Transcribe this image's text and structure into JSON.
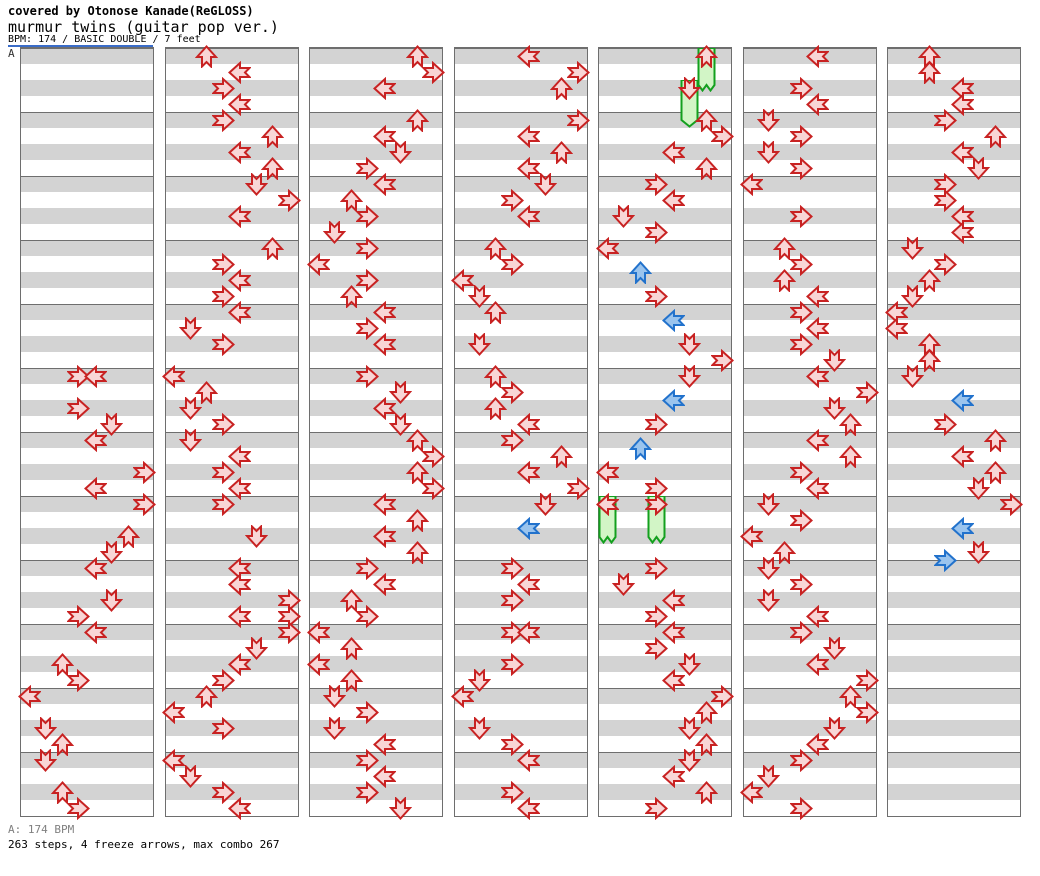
{
  "header": {
    "cover_line": "covered by Otonose Kanade(ReGLOSS)",
    "title": "murmur twins (guitar pop ver.)",
    "info_line": "BPM: 174 / BASIC DOUBLE / 7 feet"
  },
  "footer": {
    "section_bpm": "A: 174 BPM",
    "summary": "263 steps, 4 freeze arrows, max combo 267"
  },
  "section_marker": {
    "label": "A",
    "line_color": "#3a6cc8"
  },
  "colors": {
    "step_fill": "#f8d6d6",
    "step_border": "#c82222",
    "offbeat_fill": "#9ac4ee",
    "offbeat_border": "#2272cc",
    "freeze_fill": "#d2f5c6",
    "freeze_border": "#13a01e",
    "stripe_gray": "#d3d3d3",
    "grid_line": "#6e6e6e"
  },
  "chart_data": {
    "type": "step-chart",
    "title": "murmur twins (guitar pop ver.)",
    "bpm": 174,
    "difficulty": "BASIC DOUBLE",
    "feet": 7,
    "step_count": 263,
    "freeze_count": 4,
    "max_combo": 267,
    "lanes": [
      "P1-Left",
      "P1-Down",
      "P1-Up",
      "P1-Right",
      "P2-Left",
      "P2-Down",
      "P2-Up",
      "P2-Right"
    ],
    "lane_directions": [
      "left",
      "down",
      "up",
      "right",
      "left",
      "down",
      "up",
      "right"
    ],
    "columns": 7,
    "measures_per_column": 12,
    "beats_per_measure": 4,
    "steps": [
      [
        0,
        20,
        3
      ],
      [
        0,
        20,
        4
      ],
      [
        0,
        22,
        3
      ],
      [
        0,
        23,
        5
      ],
      [
        0,
        24,
        4
      ],
      [
        0,
        26,
        7
      ],
      [
        0,
        27,
        4
      ],
      [
        0,
        28,
        7
      ],
      [
        0,
        30,
        6
      ],
      [
        0,
        31,
        5
      ],
      [
        0,
        32,
        4
      ],
      [
        0,
        34,
        5
      ],
      [
        0,
        35,
        3
      ],
      [
        0,
        36,
        4
      ],
      [
        0,
        38,
        2
      ],
      [
        0,
        39,
        3
      ],
      [
        0,
        40,
        0
      ],
      [
        0,
        42,
        1
      ],
      [
        0,
        43,
        2
      ],
      [
        0,
        44,
        1
      ],
      [
        0,
        46,
        2
      ],
      [
        0,
        47,
        3
      ],
      [
        1,
        0,
        2
      ],
      [
        1,
        1,
        4
      ],
      [
        1,
        2,
        3
      ],
      [
        1,
        3,
        4
      ],
      [
        1,
        4,
        3
      ],
      [
        1,
        5,
        6
      ],
      [
        1,
        6,
        4
      ],
      [
        1,
        7,
        6
      ],
      [
        1,
        8,
        5
      ],
      [
        1,
        9,
        7
      ],
      [
        1,
        10,
        4
      ],
      [
        1,
        12,
        6
      ],
      [
        1,
        13,
        3
      ],
      [
        1,
        14,
        4
      ],
      [
        1,
        15,
        3
      ],
      [
        1,
        16,
        4
      ],
      [
        1,
        17,
        1
      ],
      [
        1,
        18,
        3
      ],
      [
        1,
        20,
        0
      ],
      [
        1,
        21,
        2
      ],
      [
        1,
        22,
        1
      ],
      [
        1,
        23,
        3
      ],
      [
        1,
        24,
        1
      ],
      [
        1,
        25,
        4
      ],
      [
        1,
        26,
        3
      ],
      [
        1,
        27,
        4
      ],
      [
        1,
        28,
        3
      ],
      [
        1,
        30,
        5
      ],
      [
        1,
        32,
        4
      ],
      [
        1,
        33,
        4
      ],
      [
        1,
        34,
        7
      ],
      [
        1,
        35,
        4
      ],
      [
        1,
        35,
        7
      ],
      [
        1,
        36,
        7
      ],
      [
        1,
        37,
        5
      ],
      [
        1,
        38,
        4
      ],
      [
        1,
        39,
        3
      ],
      [
        1,
        40,
        2
      ],
      [
        1,
        41,
        0
      ],
      [
        1,
        42,
        3
      ],
      [
        1,
        44,
        0
      ],
      [
        1,
        45,
        1
      ],
      [
        1,
        46,
        3
      ],
      [
        1,
        47,
        4
      ],
      [
        2,
        0,
        6
      ],
      [
        2,
        1,
        7
      ],
      [
        2,
        2,
        4
      ],
      [
        2,
        4,
        6
      ],
      [
        2,
        5,
        4
      ],
      [
        2,
        6,
        5
      ],
      [
        2,
        7,
        3
      ],
      [
        2,
        8,
        4
      ],
      [
        2,
        9,
        2
      ],
      [
        2,
        10,
        3
      ],
      [
        2,
        11,
        1
      ],
      [
        2,
        12,
        3
      ],
      [
        2,
        13,
        0
      ],
      [
        2,
        14,
        3
      ],
      [
        2,
        15,
        2
      ],
      [
        2,
        16,
        4
      ],
      [
        2,
        17,
        3
      ],
      [
        2,
        18,
        4
      ],
      [
        2,
        20,
        3
      ],
      [
        2,
        21,
        5
      ],
      [
        2,
        22,
        4
      ],
      [
        2,
        23,
        5
      ],
      [
        2,
        24,
        6
      ],
      [
        2,
        25,
        7
      ],
      [
        2,
        26,
        6
      ],
      [
        2,
        27,
        7
      ],
      [
        2,
        28,
        4
      ],
      [
        2,
        29,
        6
      ],
      [
        2,
        30,
        4
      ],
      [
        2,
        31,
        6
      ],
      [
        2,
        32,
        3
      ],
      [
        2,
        33,
        4
      ],
      [
        2,
        34,
        2
      ],
      [
        2,
        35,
        3
      ],
      [
        2,
        36,
        0
      ],
      [
        2,
        37,
        2
      ],
      [
        2,
        38,
        0
      ],
      [
        2,
        39,
        2
      ],
      [
        2,
        40,
        1
      ],
      [
        2,
        41,
        3
      ],
      [
        2,
        42,
        1
      ],
      [
        2,
        43,
        4
      ],
      [
        2,
        44,
        3
      ],
      [
        2,
        45,
        4
      ],
      [
        2,
        46,
        3
      ],
      [
        2,
        47,
        5
      ],
      [
        3,
        0,
        4
      ],
      [
        3,
        1,
        7
      ],
      [
        3,
        2,
        6
      ],
      [
        3,
        4,
        7
      ],
      [
        3,
        5,
        4
      ],
      [
        3,
        6,
        6
      ],
      [
        3,
        7,
        4
      ],
      [
        3,
        8,
        5
      ],
      [
        3,
        9,
        3
      ],
      [
        3,
        10,
        4
      ],
      [
        3,
        12,
        2
      ],
      [
        3,
        13,
        3
      ],
      [
        3,
        14,
        0
      ],
      [
        3,
        15,
        1
      ],
      [
        3,
        16,
        2
      ],
      [
        3,
        18,
        1
      ],
      [
        3,
        20,
        2
      ],
      [
        3,
        21,
        3
      ],
      [
        3,
        22,
        2
      ],
      [
        3,
        23,
        4
      ],
      [
        3,
        24,
        3
      ],
      [
        3,
        25,
        6
      ],
      [
        3,
        26,
        4
      ],
      [
        3,
        27,
        7
      ],
      [
        3,
        28,
        5
      ],
      [
        3,
        32,
        3
      ],
      [
        3,
        33,
        4
      ],
      [
        3,
        34,
        3
      ],
      [
        3,
        36,
        3
      ],
      [
        3,
        36,
        4
      ],
      [
        3,
        38,
        3
      ],
      [
        3,
        39,
        1
      ],
      [
        3,
        40,
        0
      ],
      [
        3,
        42,
        1
      ],
      [
        3,
        43,
        3
      ],
      [
        3,
        44,
        4
      ],
      [
        3,
        46,
        3
      ],
      [
        3,
        47,
        4
      ],
      [
        4,
        4,
        6
      ],
      [
        4,
        5,
        7
      ],
      [
        4,
        6,
        4
      ],
      [
        4,
        7,
        6
      ],
      [
        4,
        8,
        3
      ],
      [
        4,
        9,
        4
      ],
      [
        4,
        10,
        1
      ],
      [
        4,
        11,
        3
      ],
      [
        4,
        12,
        0
      ],
      [
        4,
        15,
        3
      ],
      [
        4,
        18,
        5
      ],
      [
        4,
        19,
        7
      ],
      [
        4,
        20,
        5
      ],
      [
        4,
        23,
        3
      ],
      [
        4,
        26,
        0
      ],
      [
        4,
        27,
        3
      ],
      [
        4,
        32,
        3
      ],
      [
        4,
        33,
        1
      ],
      [
        4,
        34,
        4
      ],
      [
        4,
        35,
        3
      ],
      [
        4,
        36,
        4
      ],
      [
        4,
        37,
        3
      ],
      [
        4,
        38,
        5
      ],
      [
        4,
        39,
        4
      ],
      [
        4,
        40,
        7
      ],
      [
        4,
        41,
        6
      ],
      [
        4,
        42,
        5
      ],
      [
        4,
        43,
        6
      ],
      [
        4,
        44,
        5
      ],
      [
        4,
        45,
        4
      ],
      [
        4,
        46,
        6
      ],
      [
        4,
        47,
        3
      ],
      [
        5,
        0,
        4
      ],
      [
        5,
        2,
        3
      ],
      [
        5,
        3,
        4
      ],
      [
        5,
        4,
        1
      ],
      [
        5,
        5,
        3
      ],
      [
        5,
        6,
        1
      ],
      [
        5,
        7,
        3
      ],
      [
        5,
        8,
        0
      ],
      [
        5,
        10,
        3
      ],
      [
        5,
        12,
        2
      ],
      [
        5,
        13,
        3
      ],
      [
        5,
        14,
        2
      ],
      [
        5,
        15,
        4
      ],
      [
        5,
        16,
        3
      ],
      [
        5,
        17,
        4
      ],
      [
        5,
        18,
        3
      ],
      [
        5,
        19,
        5
      ],
      [
        5,
        20,
        4
      ],
      [
        5,
        21,
        7
      ],
      [
        5,
        22,
        5
      ],
      [
        5,
        23,
        6
      ],
      [
        5,
        24,
        4
      ],
      [
        5,
        25,
        6
      ],
      [
        5,
        26,
        3
      ],
      [
        5,
        27,
        4
      ],
      [
        5,
        28,
        1
      ],
      [
        5,
        29,
        3
      ],
      [
        5,
        30,
        0
      ],
      [
        5,
        31,
        2
      ],
      [
        5,
        32,
        1
      ],
      [
        5,
        33,
        3
      ],
      [
        5,
        34,
        1
      ],
      [
        5,
        35,
        4
      ],
      [
        5,
        36,
        3
      ],
      [
        5,
        37,
        5
      ],
      [
        5,
        38,
        4
      ],
      [
        5,
        39,
        7
      ],
      [
        5,
        40,
        6
      ],
      [
        5,
        41,
        7
      ],
      [
        5,
        42,
        5
      ],
      [
        5,
        43,
        4
      ],
      [
        5,
        44,
        3
      ],
      [
        5,
        45,
        1
      ],
      [
        5,
        46,
        0
      ],
      [
        5,
        47,
        3
      ],
      [
        6,
        0,
        2
      ],
      [
        6,
        1,
        2
      ],
      [
        6,
        2,
        4
      ],
      [
        6,
        3,
        4
      ],
      [
        6,
        4,
        3
      ],
      [
        6,
        5,
        6
      ],
      [
        6,
        6,
        4
      ],
      [
        6,
        7,
        5
      ],
      [
        6,
        8,
        3
      ],
      [
        6,
        9,
        3
      ],
      [
        6,
        10,
        4
      ],
      [
        6,
        11,
        4
      ],
      [
        6,
        12,
        1
      ],
      [
        6,
        13,
        3
      ],
      [
        6,
        14,
        2
      ],
      [
        6,
        15,
        1
      ],
      [
        6,
        16,
        0
      ],
      [
        6,
        17,
        0
      ],
      [
        6,
        18,
        2
      ],
      [
        6,
        19,
        2
      ],
      [
        6,
        20,
        1
      ],
      [
        6,
        23,
        3
      ],
      [
        6,
        24,
        6
      ],
      [
        6,
        25,
        4
      ],
      [
        6,
        26,
        6
      ],
      [
        6,
        27,
        5
      ],
      [
        6,
        28,
        7
      ],
      [
        6,
        31,
        5
      ]
    ],
    "offbeat_steps": [
      [
        3,
        29.5,
        4
      ],
      [
        4,
        13.5,
        2
      ],
      [
        4,
        16.5,
        4
      ],
      [
        4,
        21.5,
        4
      ],
      [
        4,
        24.5,
        2
      ],
      [
        6,
        21.5,
        4
      ],
      [
        6,
        29.5,
        4
      ],
      [
        6,
        31.5,
        3
      ]
    ],
    "freezes": [
      {
        "col": 4,
        "lane": 6,
        "beat": 0,
        "end": 2.25,
        "tail": "notch"
      },
      {
        "col": 4,
        "lane": 5,
        "beat": 2,
        "end": 4.5,
        "tail": "point"
      },
      {
        "col": 4,
        "lane": 0,
        "beat": 28,
        "end": 30.5,
        "tail": "notch"
      },
      {
        "col": 4,
        "lane": 3,
        "beat": 28,
        "end": 30.5,
        "tail": "notch"
      }
    ]
  }
}
